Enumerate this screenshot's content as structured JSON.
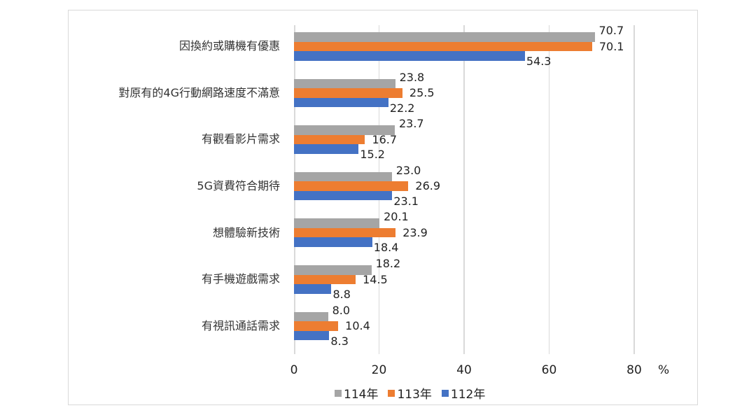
{
  "chart_data": {
    "type": "bar",
    "orientation": "horizontal",
    "title": "",
    "xlabel": "%",
    "ylabel": "",
    "xlim": [
      0,
      80
    ],
    "xticks": [
      "0",
      "20",
      "40",
      "60",
      "80"
    ],
    "unit": "%",
    "grid": true,
    "legend_position": "bottom",
    "categories": [
      "因換約或購機有優惠",
      "對原有的4G行動網路速度不滿意",
      "有觀看影片需求",
      "5G資費符合期待",
      "想體驗新技術",
      "有手機遊戲需求",
      "有視訊通話需求"
    ],
    "series": [
      {
        "name": "114年",
        "color": "#a5a5a5",
        "values": [
          70.7,
          23.8,
          23.7,
          23.0,
          20.1,
          18.2,
          8.0
        ]
      },
      {
        "name": "113年",
        "color": "#ed7d31",
        "values": [
          70.1,
          25.5,
          16.7,
          26.9,
          23.9,
          14.5,
          10.4
        ]
      },
      {
        "name": "112年",
        "color": "#4472c4",
        "values": [
          54.3,
          22.2,
          15.2,
          23.1,
          18.4,
          8.8,
          8.3
        ]
      }
    ]
  },
  "labels": {
    "categories": [
      "因換約或購機有優惠",
      "對原有的4G行動網路速度不滿意",
      "有觀看影片需求",
      "5G資費符合期待",
      "想體驗新技術",
      "有手機遊戲需求",
      "有視訊通話需求"
    ],
    "values": [
      [
        "70.7",
        "70.1",
        "54.3"
      ],
      [
        "23.8",
        "25.5",
        "22.2"
      ],
      [
        "23.7",
        "16.7",
        "15.2"
      ],
      [
        "23.0",
        "26.9",
        "23.1"
      ],
      [
        "20.1",
        "23.9",
        "18.4"
      ],
      [
        "18.2",
        "14.5",
        "8.8"
      ],
      [
        "8.0",
        "10.4",
        "8.3"
      ]
    ],
    "ticks": [
      "0",
      "20",
      "40",
      "60",
      "80"
    ],
    "unit": "%",
    "legend": [
      "114年",
      "113年",
      "112年"
    ]
  }
}
